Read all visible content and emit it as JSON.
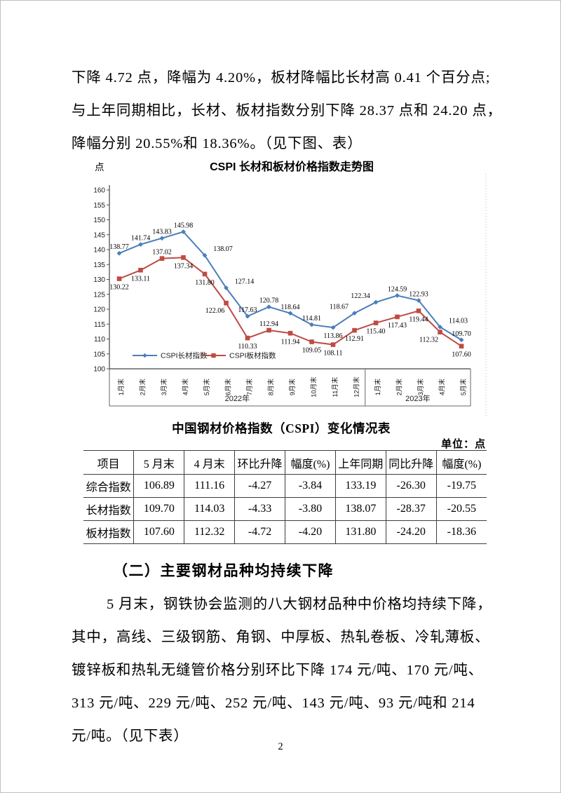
{
  "page_number": "2",
  "intro": {
    "lines": [
      "下降 4.72 点，降幅为 4.20%，板材降幅比长材高 0.41 个百分点;",
      "与上年同期相比，长材、板材指数分别下降 28.37 点和 24.20 点，",
      "降幅分别 20.55%和 18.36%。（见下图、表）"
    ]
  },
  "chart_data": {
    "type": "line",
    "title": "CSPI 长材和板材价格指数走势图",
    "y_axis_unit": "点",
    "ylim": [
      100,
      160
    ],
    "y_tick_step": 5,
    "grid": false,
    "legend_position": "bottom-left-inside",
    "categories": [
      "1月末",
      "2月末",
      "3月末",
      "4月末",
      "5月末",
      "6月末",
      "7月末",
      "8月末",
      "9月末",
      "10月末",
      "11月末",
      "12月末",
      "1月末",
      "2月末",
      "3月末",
      "4月末",
      "5月末"
    ],
    "year_groups": [
      {
        "label": "2022年",
        "count": 12
      },
      {
        "label": "2023年",
        "count": 5
      }
    ],
    "series": [
      {
        "name": "CSPI长材指数",
        "color": "#4A7EBB",
        "marker": "diamond",
        "values": [
          138.77,
          141.74,
          143.83,
          145.98,
          138.07,
          127.14,
          117.63,
          120.78,
          118.64,
          114.81,
          113.86,
          118.67,
          122.34,
          124.59,
          122.93,
          114.03,
          109.7
        ],
        "label_pos": [
          "a",
          "a",
          "a",
          "a",
          "ar",
          "ar",
          "a",
          "a",
          "a",
          "a",
          "b",
          "al",
          "al",
          "a",
          "a",
          "ar",
          "a"
        ]
      },
      {
        "name": "CSPI板材指数",
        "color": "#BE4B45",
        "marker": "square",
        "values": [
          130.22,
          133.11,
          137.02,
          137.34,
          131.8,
          122.06,
          110.33,
          112.94,
          111.94,
          109.05,
          108.11,
          112.91,
          115.4,
          117.43,
          119.44,
          112.32,
          107.6
        ],
        "label_pos": [
          "b",
          "b",
          "a",
          "b",
          "b",
          "bl",
          "b",
          "a",
          "b",
          "b",
          "b",
          "b",
          "b",
          "b",
          "b",
          "bl",
          "b"
        ]
      }
    ]
  },
  "table": {
    "title": "中国钢材价格指数（CSPI）变化情况表",
    "unit_note": "单位：点",
    "headers": [
      "项目",
      "5 月末",
      "4 月末",
      "环比升降",
      "幅度(%)",
      "上年同期",
      "同比升降",
      "幅度(%)"
    ],
    "rows": [
      [
        "综合指数",
        "106.89",
        "111.16",
        "-4.27",
        "-3.84",
        "133.19",
        "-26.30",
        "-19.75"
      ],
      [
        "长材指数",
        "109.70",
        "114.03",
        "-4.33",
        "-3.80",
        "138.07",
        "-28.37",
        "-20.55"
      ],
      [
        "板材指数",
        "107.60",
        "112.32",
        "-4.72",
        "-4.20",
        "131.80",
        "-24.20",
        "-18.36"
      ]
    ]
  },
  "section": {
    "heading": "（二）主要钢材品种均持续下降",
    "lines": [
      "5 月末，钢铁协会监测的八大钢材品种中价格均持续下降，",
      "其中，高线、三级钢筋、角钢、中厚板、热轧卷板、冷轧薄板、",
      "镀锌板和热轧无缝管价格分别环比下降 174 元/吨、170 元/吨、",
      "313 元/吨、229 元/吨、252 元/吨、143 元/吨、93 元/吨和 214",
      "元/吨。（见下表）"
    ]
  }
}
